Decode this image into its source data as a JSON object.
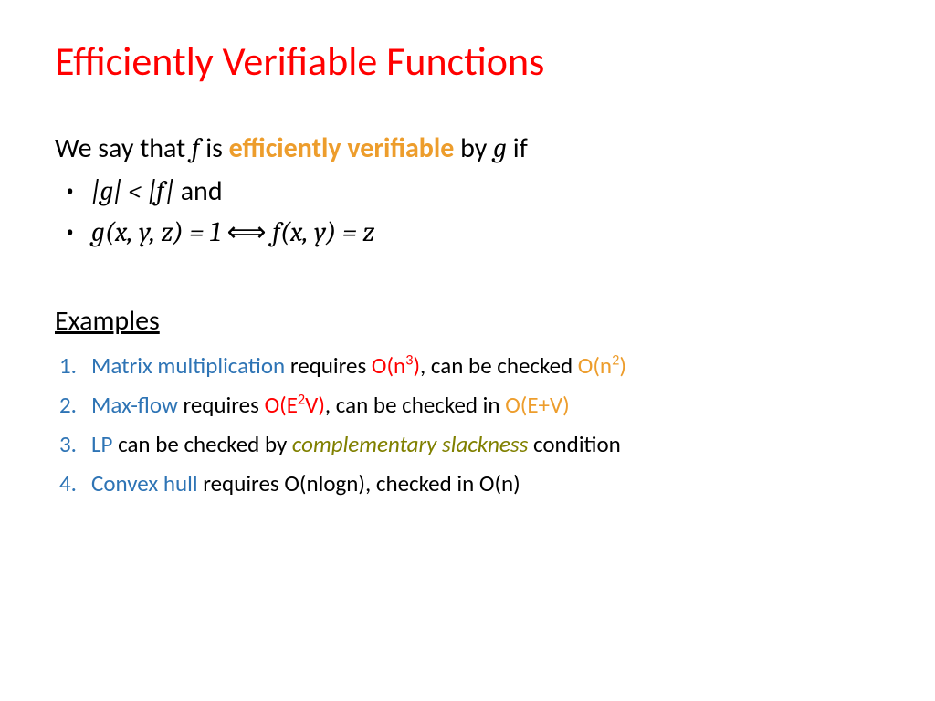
{
  "colors": {
    "title": "#ff0000",
    "highlight": "#ed9d2c",
    "blue": "#2e74b5",
    "red": "#ff0000",
    "orange": "#ed9d2c",
    "olive": "#808000",
    "black": "#000000"
  },
  "title": "Efficiently Verifiable Functions",
  "definition": {
    "prefix": "We say that ",
    "f": "f",
    "mid1": " is ",
    "highlight": "efficiently verifiable",
    "mid2": " by ",
    "g": "g",
    "suffix": " if"
  },
  "bullets": {
    "b1": {
      "expr": "|g| < |f|",
      "tail": " and"
    },
    "b2": {
      "lhs": "g(x, y, z) = 1",
      "iff": "  ⟺  ",
      "rhs": "f(x, y) = z"
    }
  },
  "examples_heading": "Examples",
  "examples": {
    "e1": {
      "topic": "Matrix multiplication",
      "t1": " requires ",
      "c1a": "O(n",
      "c1b": "3",
      "c1c": ")",
      "t2": ", can be checked ",
      "c2a": "O(n",
      "c2b": "2",
      "c2c": ")"
    },
    "e2": {
      "topic": "Max-flow",
      "t1": " requires ",
      "c1a": "O(E",
      "c1b": "2",
      "c1c": "V)",
      "t2": ", can be checked in ",
      "c2": "O(E+V)"
    },
    "e3": {
      "topic": "LP",
      "t1": " can be checked by ",
      "em": "complementary slackness",
      "t2": " condition"
    },
    "e4": {
      "topic": "Convex hull",
      "t1": " requires O(nlogn), checked in O(n)"
    }
  }
}
